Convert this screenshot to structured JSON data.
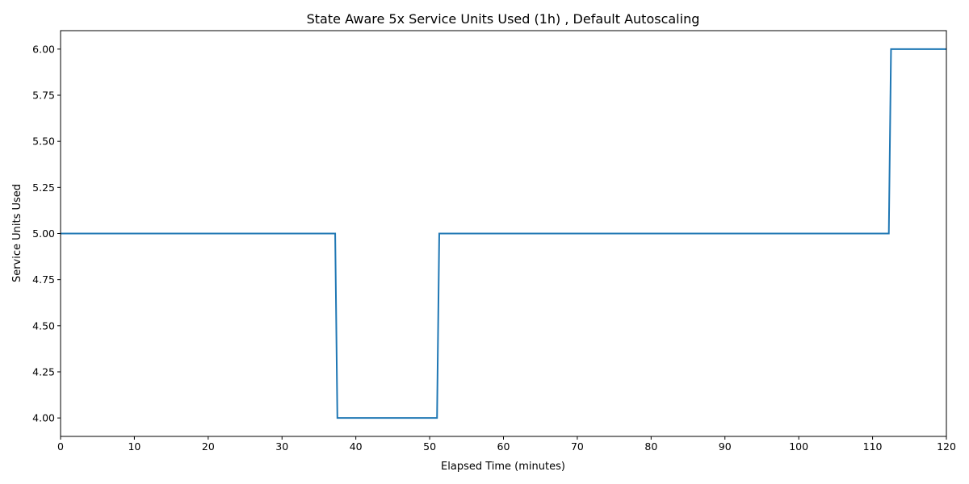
{
  "chart_data": {
    "type": "line",
    "title": "State Aware 5x Service Units Used (1h) , Default Autoscaling",
    "xlabel": "Elapsed Time (minutes)",
    "ylabel": "Service Units Used",
    "xlim": [
      0,
      120
    ],
    "ylim": [
      3.9,
      6.1
    ],
    "xticks": [
      0,
      10,
      20,
      30,
      40,
      50,
      60,
      70,
      80,
      90,
      100,
      110,
      120
    ],
    "xtick_labels": [
      "0",
      "10",
      "20",
      "30",
      "40",
      "50",
      "60",
      "70",
      "80",
      "90",
      "100",
      "110",
      "120"
    ],
    "yticks": [
      4.0,
      4.25,
      4.5,
      4.75,
      5.0,
      5.25,
      5.5,
      5.75,
      6.0
    ],
    "ytick_labels": [
      "4.00",
      "4.25",
      "4.50",
      "4.75",
      "5.00",
      "5.25",
      "5.50",
      "5.75",
      "6.00"
    ],
    "grid": false,
    "series": [
      {
        "color": "#1f77b4",
        "x": [
          0,
          37.2,
          37.5,
          51.0,
          51.3,
          112.2,
          112.5,
          120
        ],
        "y": [
          5,
          5,
          4,
          4,
          5,
          5,
          6,
          6
        ]
      }
    ]
  }
}
